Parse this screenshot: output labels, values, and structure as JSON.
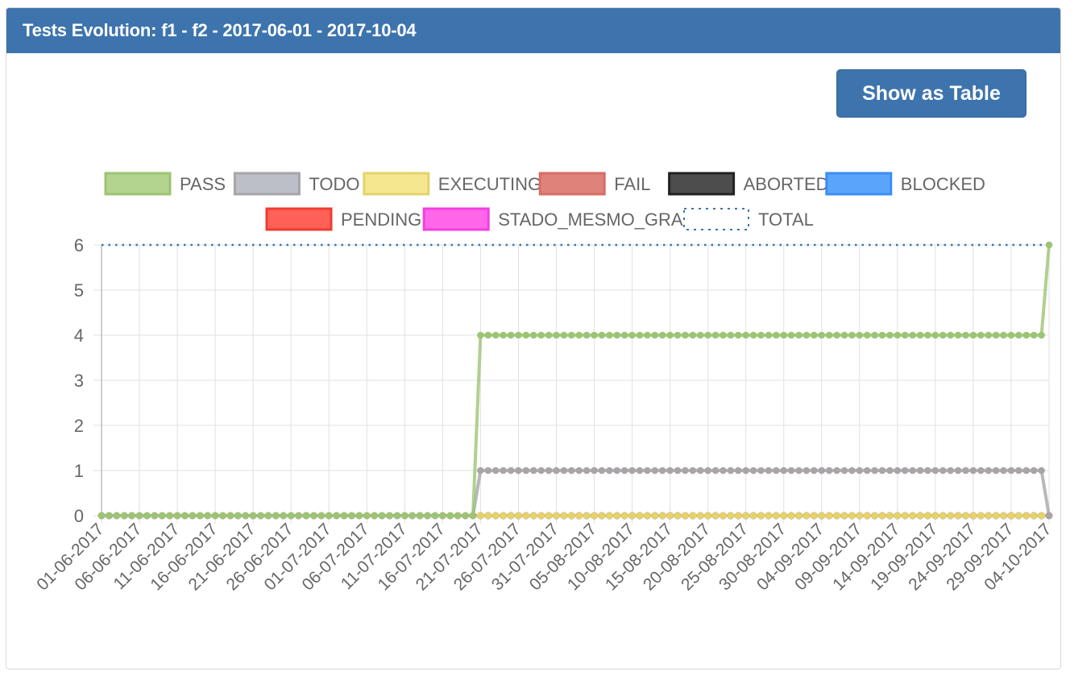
{
  "panel": {
    "title": "Tests Evolution: f1 - f2 - 2017-06-01 - 2017-10-04",
    "show_table_label": "Show as Table"
  },
  "colors": {
    "header": "#3e74ad",
    "button": "#3e74ad"
  },
  "chart_data": {
    "type": "line",
    "title": "",
    "xlabel": "",
    "ylabel": "",
    "ylim": [
      0,
      6
    ],
    "yticks": [
      0,
      1,
      2,
      3,
      4,
      5,
      6
    ],
    "grid": true,
    "legend_position": "top",
    "date_start": "2017-06-01",
    "date_end": "2017-10-04",
    "x_tick_labels": [
      "01-06-2017",
      "06-06-2017",
      "11-06-2017",
      "16-06-2017",
      "21-06-2017",
      "26-06-2017",
      "01-07-2017",
      "06-07-2017",
      "11-07-2017",
      "16-07-2017",
      "21-07-2017",
      "26-07-2017",
      "31-07-2017",
      "05-08-2017",
      "10-08-2017",
      "15-08-2017",
      "20-08-2017",
      "25-08-2017",
      "30-08-2017",
      "04-09-2017",
      "09-09-2017",
      "14-09-2017",
      "19-09-2017",
      "24-09-2017",
      "29-09-2017",
      "04-10-2017"
    ],
    "series": [
      {
        "name": "PASS",
        "color": "#9cc474",
        "fill": "#b3d48f",
        "style": "solid",
        "segments": [
          {
            "from": "2017-06-01",
            "to": "2017-07-20",
            "value": 0
          },
          {
            "from": "2017-07-21",
            "to": "2017-10-03",
            "value": 4
          },
          {
            "from": "2017-10-04",
            "to": "2017-10-04",
            "value": 6
          }
        ]
      },
      {
        "name": "TODO",
        "color": "#a9a4a8",
        "fill": "#bcbfc7",
        "style": "solid",
        "segments": [
          {
            "from": "2017-06-01",
            "to": "2017-07-20",
            "value": 0
          },
          {
            "from": "2017-07-21",
            "to": "2017-10-03",
            "value": 1
          },
          {
            "from": "2017-10-04",
            "to": "2017-10-04",
            "value": 0
          }
        ]
      },
      {
        "name": "EXECUTING",
        "color": "#e3d36d",
        "fill": "#f5e690",
        "style": "solid",
        "segments": [
          {
            "from": "2017-06-01",
            "to": "2017-10-04",
            "value": 0
          }
        ]
      },
      {
        "name": "FAIL",
        "color": "#d66e65",
        "fill": "#df827a",
        "style": "solid",
        "segments": [
          {
            "from": "2017-06-01",
            "to": "2017-10-04",
            "value": 0
          }
        ]
      },
      {
        "name": "ABORTED",
        "color": "#222222",
        "fill": "#4d4d4d",
        "style": "solid",
        "segments": [
          {
            "from": "2017-06-01",
            "to": "2017-10-04",
            "value": 0
          }
        ]
      },
      {
        "name": "BLOCKED",
        "color": "#3a8ef5",
        "fill": "#5aa5fb",
        "style": "solid",
        "segments": [
          {
            "from": "2017-06-01",
            "to": "2017-10-04",
            "value": 0
          }
        ]
      },
      {
        "name": "PENDING",
        "color": "#ee3c33",
        "fill": "#ff6156",
        "style": "solid",
        "segments": [
          {
            "from": "2017-06-01",
            "to": "2017-10-04",
            "value": 0
          }
        ]
      },
      {
        "name": "STADO_MESMO_GRANDE",
        "color": "#f23ee0",
        "fill": "#ff66e8",
        "style": "solid",
        "segments": [
          {
            "from": "2017-06-01",
            "to": "2017-10-04",
            "value": 0
          }
        ]
      },
      {
        "name": "TOTAL",
        "color": "#3e74ad",
        "fill": "#ffffff",
        "style": "dotted",
        "segments": [
          {
            "from": "2017-06-01",
            "to": "2017-10-04",
            "value": 6
          }
        ]
      }
    ]
  }
}
